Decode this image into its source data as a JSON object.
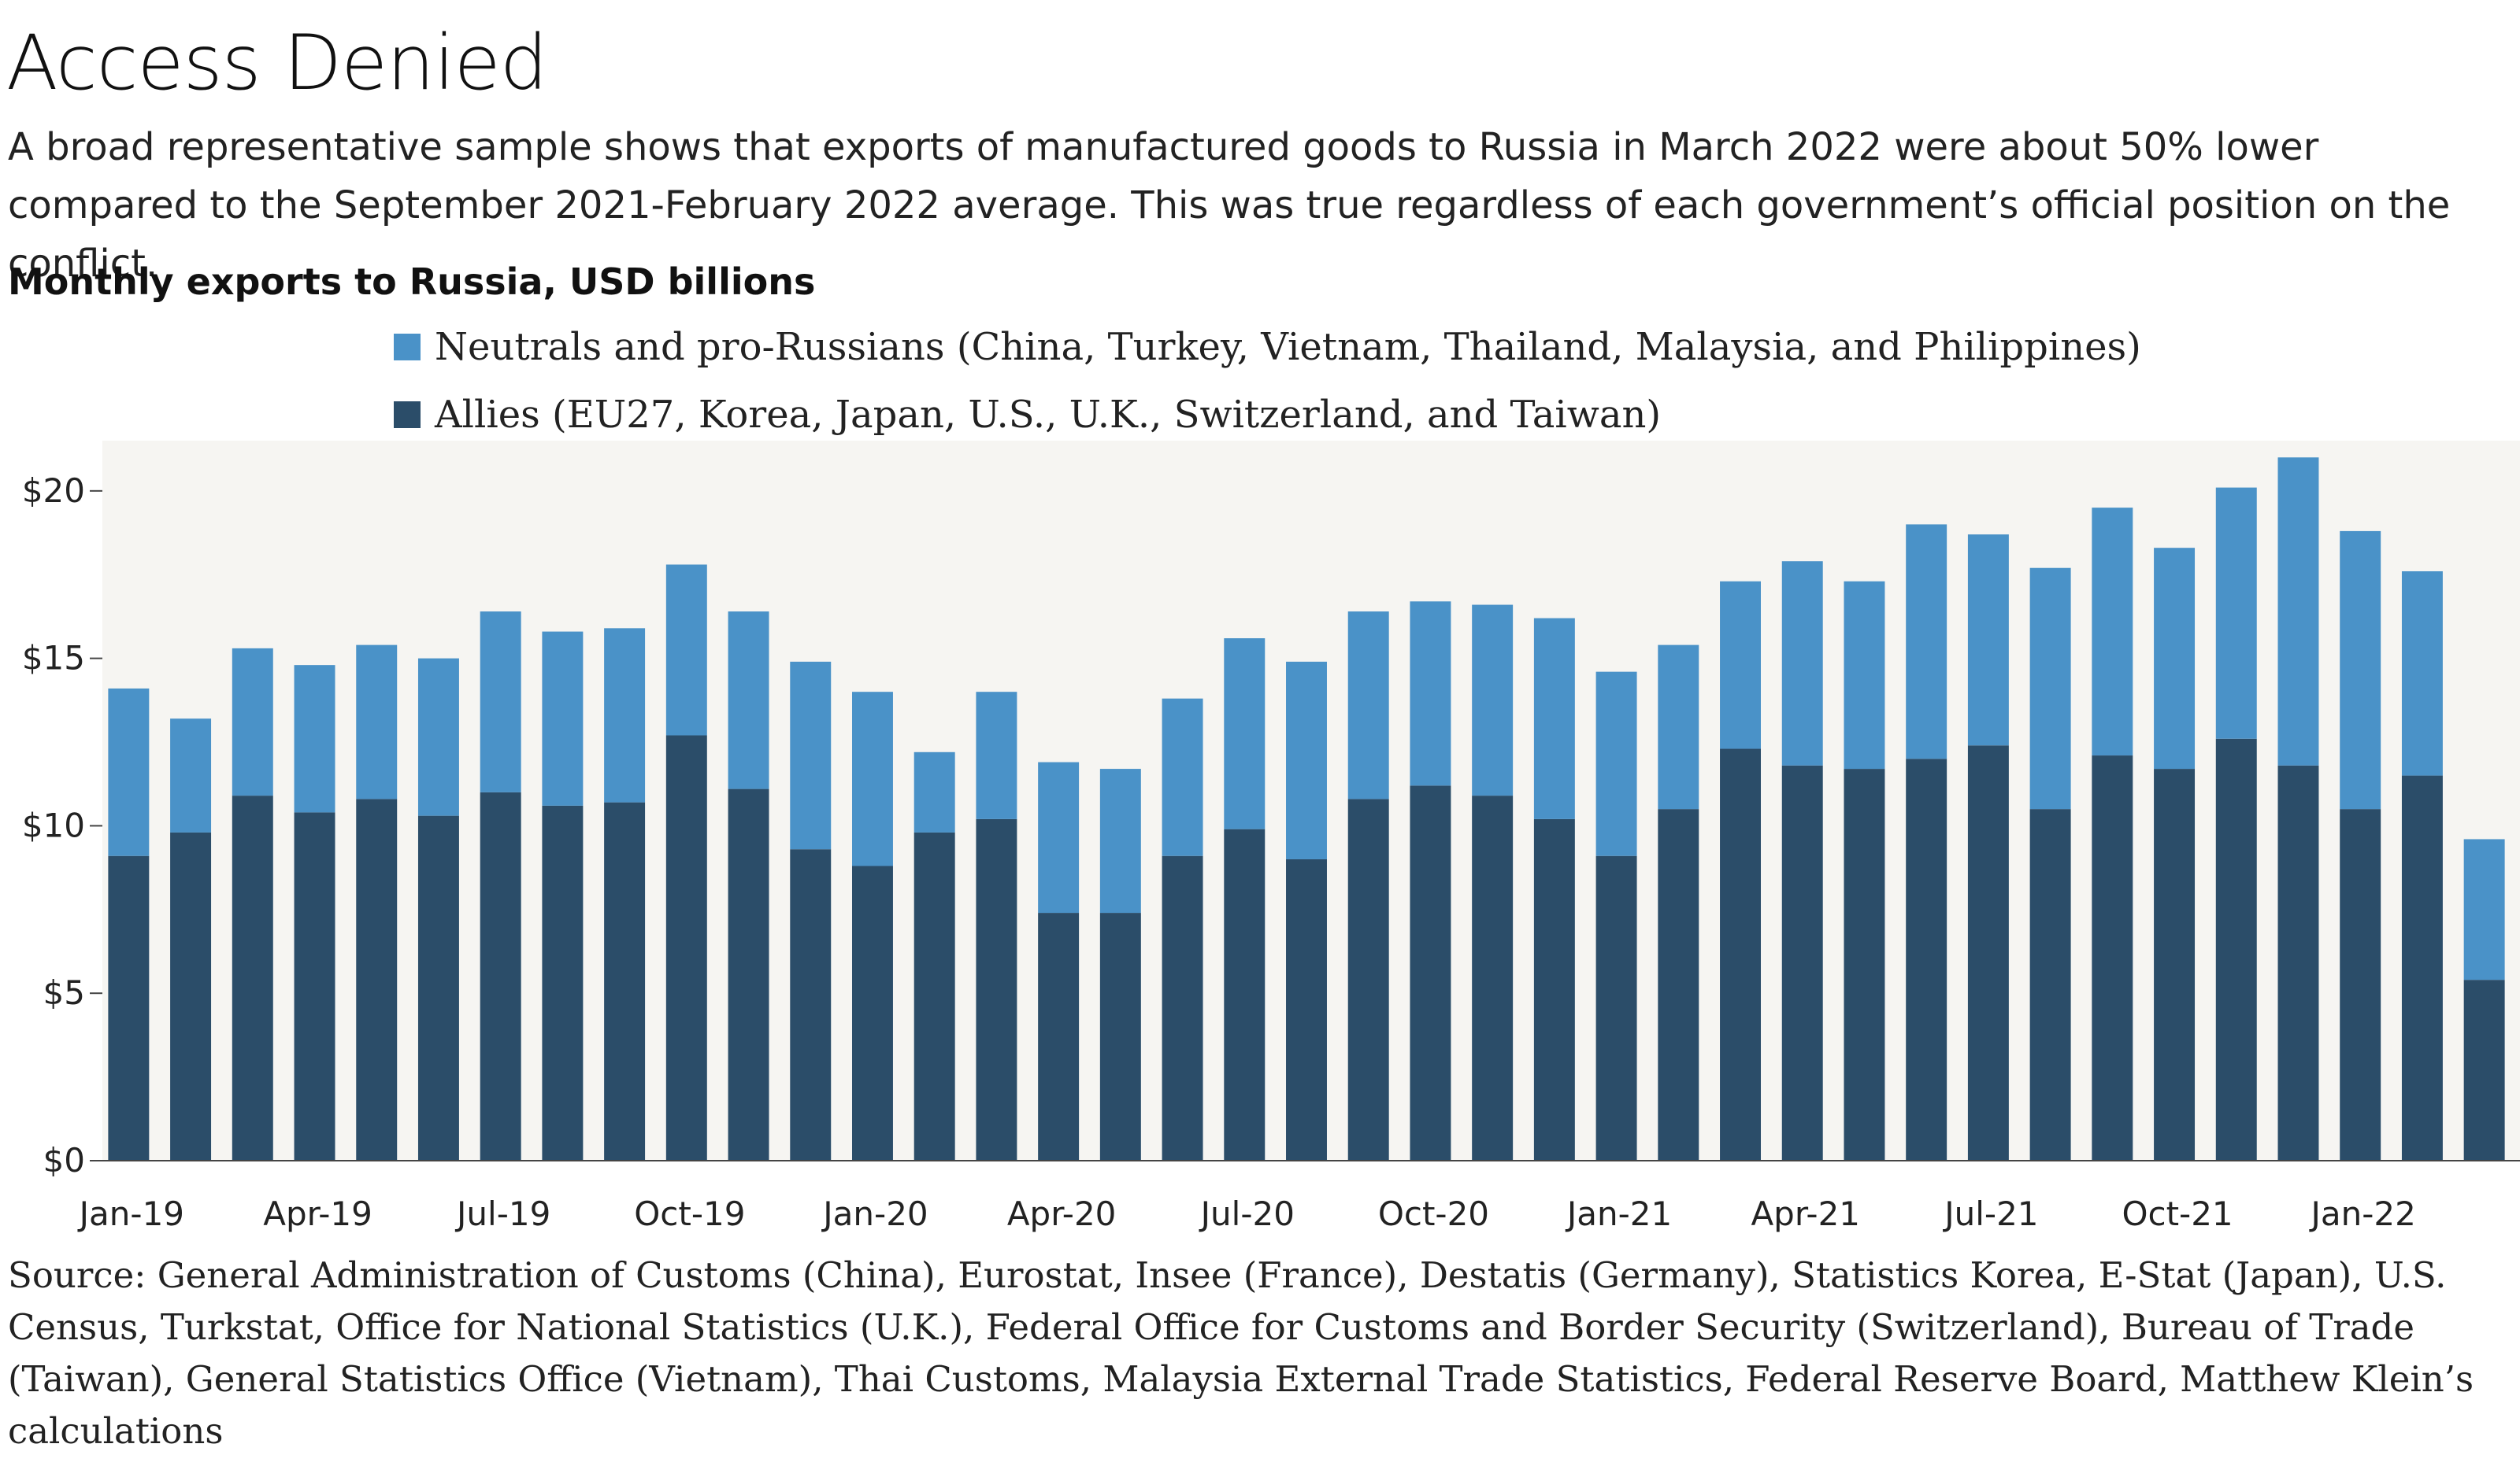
{
  "header": {
    "title": "Access Denied",
    "subtitle": "A broad representative sample shows that exports of manufactured goods to Russia in March 2022 were about 50% lower compared to the September 2021-February 2022 average. This was true regardless of each government’s official position on the conflict.",
    "chart_heading": "Monthly exports to Russia, USD billions"
  },
  "legend": {
    "items": [
      {
        "label": "Neutrals and pro-Russians (China, Turkey, Vietnam, Thailand, Malaysia, and Philippines)",
        "color": "#4a92c8"
      },
      {
        "label": "Allies (EU27, Korea, Japan, U.S., U.K., Switzerland, and Taiwan)",
        "color": "#2b4d69"
      }
    ]
  },
  "colors": {
    "plot_background": "#f6f5f2",
    "allies": "#2b4d69",
    "neutrals": "#4a92c8"
  },
  "footer": {
    "source": "Source: General Administration of Customs (China), Eurostat, Insee (France), Destatis (Germany), Statistics Korea, E-Stat (Japan), U.S. Census, Turkstat, Office for National Statistics (U.K.), Federal Office for Customs and Border Security (Switzerland), Bureau of Trade (Taiwan), General Statistics Office (Vietnam), Thai Customs, Malaysia External Trade Statistics, Federal Reserve Board, Matthew Klein’s calculations"
  },
  "chart_data": {
    "type": "bar",
    "stacked": true,
    "title": "Monthly exports to Russia, USD billions",
    "xlabel": "",
    "ylabel": "",
    "ylim": [
      0,
      21.5
    ],
    "yticks": [
      0,
      5,
      10,
      15,
      20
    ],
    "ytick_labels": [
      "$0",
      "$5",
      "$10",
      "$15",
      "$20"
    ],
    "categories": [
      "Jan-19",
      "Feb-19",
      "Mar-19",
      "Apr-19",
      "May-19",
      "Jun-19",
      "Jul-19",
      "Aug-19",
      "Sep-19",
      "Oct-19",
      "Nov-19",
      "Dec-19",
      "Jan-20",
      "Feb-20",
      "Mar-20",
      "Apr-20",
      "May-20",
      "Jun-20",
      "Jul-20",
      "Aug-20",
      "Sep-20",
      "Oct-20",
      "Nov-20",
      "Dec-20",
      "Jan-21",
      "Feb-21",
      "Mar-21",
      "Apr-21",
      "May-21",
      "Jun-21",
      "Jul-21",
      "Aug-21",
      "Sep-21",
      "Oct-21",
      "Nov-21",
      "Dec-21",
      "Jan-22",
      "Feb-22",
      "Mar-22"
    ],
    "xtick_labels": [
      "Jan-19",
      "Apr-19",
      "Jul-19",
      "Oct-19",
      "Jan-20",
      "Apr-20",
      "Jul-20",
      "Oct-20",
      "Jan-21",
      "Apr-21",
      "Jul-21",
      "Oct-21",
      "Jan-22"
    ],
    "xtick_indices": [
      0,
      3,
      6,
      9,
      12,
      15,
      18,
      21,
      24,
      27,
      30,
      33,
      36
    ],
    "series": [
      {
        "name": "Allies (EU27, Korea, Japan, U.S., U.K., Switzerland, and Taiwan)",
        "values": [
          9.1,
          9.8,
          10.9,
          10.4,
          10.8,
          10.3,
          11.0,
          10.6,
          10.7,
          12.7,
          11.1,
          9.3,
          8.8,
          9.8,
          10.2,
          7.4,
          7.4,
          9.1,
          9.9,
          9.0,
          10.8,
          11.2,
          10.9,
          10.2,
          9.1,
          10.5,
          12.3,
          11.8,
          11.7,
          12.0,
          12.4,
          10.5,
          12.1,
          11.7,
          12.6,
          11.8,
          10.5,
          11.5,
          5.4
        ]
      },
      {
        "name": "Neutrals and pro-Russians (China, Turkey, Vietnam, Thailand, Malaysia, and Philippines)",
        "values": [
          5.0,
          3.4,
          4.4,
          4.4,
          4.6,
          4.7,
          5.4,
          5.2,
          5.2,
          5.1,
          5.3,
          5.6,
          5.2,
          2.4,
          3.8,
          4.5,
          4.3,
          4.7,
          5.7,
          5.9,
          5.6,
          5.5,
          5.7,
          6.0,
          5.5,
          4.9,
          5.0,
          6.1,
          5.6,
          7.0,
          6.3,
          7.2,
          7.4,
          6.6,
          7.5,
          9.2,
          8.3,
          6.1,
          4.2
        ]
      }
    ],
    "totals": [
      14.1,
      13.2,
      15.3,
      14.8,
      15.4,
      15.0,
      16.4,
      15.8,
      15.9,
      17.8,
      16.4,
      14.9,
      14.0,
      12.2,
      14.0,
      11.9,
      11.7,
      13.8,
      15.6,
      14.9,
      16.4,
      16.7,
      16.6,
      16.2,
      14.6,
      15.4,
      17.3,
      17.9,
      17.3,
      19.0,
      18.7,
      17.7,
      19.5,
      18.3,
      20.1,
      21.0,
      18.8,
      17.6,
      9.6
    ],
    "grid": true,
    "legend_position": "top"
  }
}
